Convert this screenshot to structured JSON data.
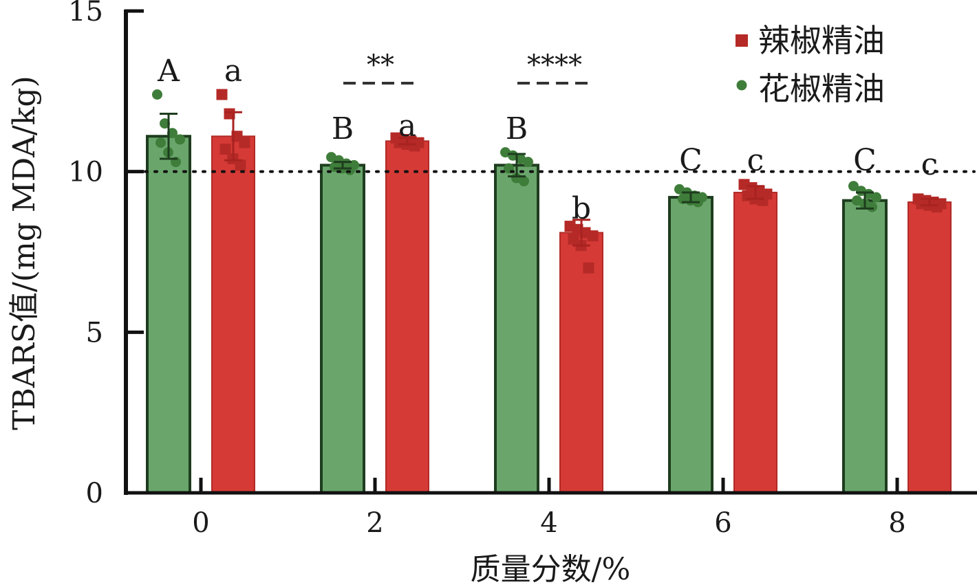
{
  "chart_data": {
    "type": "bar",
    "xlabel": "质量分数/%",
    "ylabel": "TBARS值/(mg MDA/kg)",
    "categories": [
      "0",
      "2",
      "4",
      "6",
      "8"
    ],
    "ylim": [
      0,
      15
    ],
    "yticks": [
      0,
      5,
      10,
      15
    ],
    "reference_line": 10,
    "grid": false,
    "legend_position": "top-right",
    "colors": {
      "green": "#6aa66c",
      "green_edge": "#1e3d1e",
      "green_dot": "#3f7d3a",
      "red": "#d63a36",
      "red_edge": "#b02a26",
      "red_dot": "#b52a27",
      "axis": "#111111"
    },
    "series": [
      {
        "name": "花椒精油",
        "marker": "circle",
        "values": [
          11.1,
          10.2,
          10.2,
          9.2,
          9.1
        ],
        "errors": [
          0.7,
          0.1,
          0.35,
          0.15,
          0.25
        ],
        "letters": [
          "A",
          "B",
          "B",
          "C",
          "C"
        ],
        "points": [
          [
            12.4,
            11.5,
            11.2,
            11.0,
            10.9,
            10.6,
            10.3
          ],
          [
            10.45,
            10.35,
            10.25,
            10.2,
            10.15,
            10.1,
            10.05
          ],
          [
            10.6,
            10.5,
            10.4,
            10.3,
            10.1,
            9.8,
            9.7
          ],
          [
            9.45,
            9.35,
            9.25,
            9.2,
            9.15,
            9.1,
            9.05
          ],
          [
            9.55,
            9.4,
            9.3,
            9.2,
            9.1,
            9.0,
            8.9
          ]
        ]
      },
      {
        "name": "辣椒精油",
        "marker": "square",
        "values": [
          11.1,
          10.95,
          8.1,
          9.35,
          9.05
        ],
        "errors": [
          0.75,
          0.1,
          0.4,
          0.2,
          0.1
        ],
        "letters": [
          "a",
          "a",
          "b",
          "c",
          "c"
        ],
        "points": [
          [
            12.4,
            11.8,
            11.1,
            10.9,
            10.7,
            10.4,
            10.2
          ],
          [
            11.05,
            11.0,
            10.95,
            10.9,
            10.9,
            10.85,
            10.8
          ],
          [
            8.3,
            8.2,
            8.1,
            8.0,
            7.9,
            7.7,
            7.0
          ],
          [
            9.6,
            9.5,
            9.4,
            9.3,
            9.25,
            9.15,
            9.1
          ],
          [
            9.15,
            9.1,
            9.05,
            9.0,
            9.0,
            8.95,
            8.9
          ]
        ]
      }
    ],
    "significance": [
      {
        "category": "2",
        "label": "**"
      },
      {
        "category": "4",
        "label": "****"
      }
    ]
  }
}
